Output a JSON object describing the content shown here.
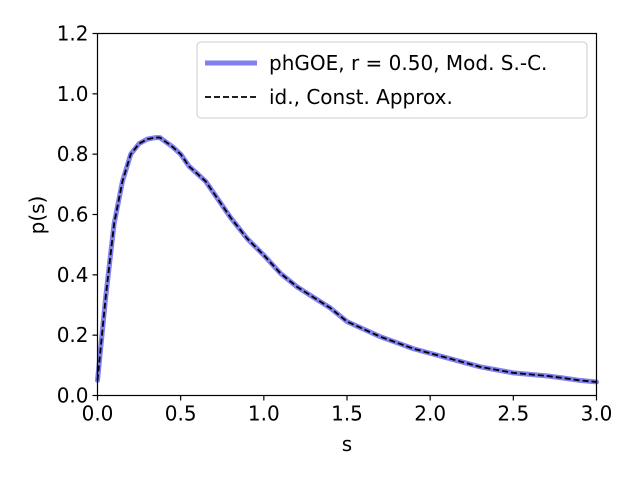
{
  "chart_data": {
    "type": "line",
    "xlabel": "s",
    "ylabel": "p(s)",
    "xlim": [
      0.0,
      3.0
    ],
    "ylim": [
      0.0,
      1.2
    ],
    "x_ticks": [
      "0.0",
      "0.5",
      "1.0",
      "1.5",
      "2.0",
      "2.5",
      "3.0"
    ],
    "y_ticks": [
      "0.0",
      "0.2",
      "0.4",
      "0.6",
      "0.8",
      "1.0",
      "1.2"
    ],
    "grid": false,
    "legend_position": "top-right",
    "series": [
      {
        "name": "phGOE, r = 0.50, Mod. S.-C.",
        "style": "solid",
        "color": "#8080f0",
        "x": [
          0.0,
          0.05,
          0.1,
          0.15,
          0.2,
          0.25,
          0.3,
          0.35,
          0.375,
          0.4,
          0.45,
          0.5,
          0.55,
          0.6,
          0.65,
          0.7,
          0.8,
          0.9,
          1.0,
          1.1,
          1.2,
          1.3,
          1.4,
          1.5,
          1.6,
          1.7,
          1.8,
          1.9,
          2.0,
          2.1,
          2.2,
          2.3,
          2.4,
          2.5,
          2.6,
          2.7,
          2.8,
          2.9,
          3.0
        ],
        "y": [
          0.05,
          0.33,
          0.57,
          0.71,
          0.8,
          0.835,
          0.85,
          0.855,
          0.855,
          0.845,
          0.825,
          0.8,
          0.76,
          0.735,
          0.71,
          0.67,
          0.59,
          0.52,
          0.465,
          0.405,
          0.36,
          0.325,
          0.29,
          0.245,
          0.22,
          0.195,
          0.175,
          0.155,
          0.14,
          0.125,
          0.11,
          0.095,
          0.085,
          0.075,
          0.07,
          0.065,
          0.058,
          0.05,
          0.045
        ]
      },
      {
        "name": "id., Const. Approx.",
        "style": "dashed",
        "color": "#000000",
        "x": [
          0.0,
          0.05,
          0.1,
          0.15,
          0.2,
          0.25,
          0.3,
          0.35,
          0.375,
          0.4,
          0.45,
          0.5,
          0.55,
          0.6,
          0.65,
          0.7,
          0.8,
          0.9,
          1.0,
          1.1,
          1.2,
          1.3,
          1.4,
          1.5,
          1.6,
          1.7,
          1.8,
          1.9,
          2.0,
          2.1,
          2.2,
          2.3,
          2.4,
          2.5,
          2.6,
          2.7,
          2.8,
          2.9,
          3.0
        ],
        "y": [
          0.05,
          0.33,
          0.57,
          0.71,
          0.8,
          0.835,
          0.85,
          0.855,
          0.855,
          0.845,
          0.825,
          0.8,
          0.76,
          0.735,
          0.71,
          0.67,
          0.59,
          0.52,
          0.465,
          0.405,
          0.36,
          0.325,
          0.29,
          0.245,
          0.22,
          0.195,
          0.175,
          0.155,
          0.14,
          0.125,
          0.11,
          0.095,
          0.085,
          0.075,
          0.07,
          0.065,
          0.058,
          0.05,
          0.045
        ]
      }
    ]
  }
}
